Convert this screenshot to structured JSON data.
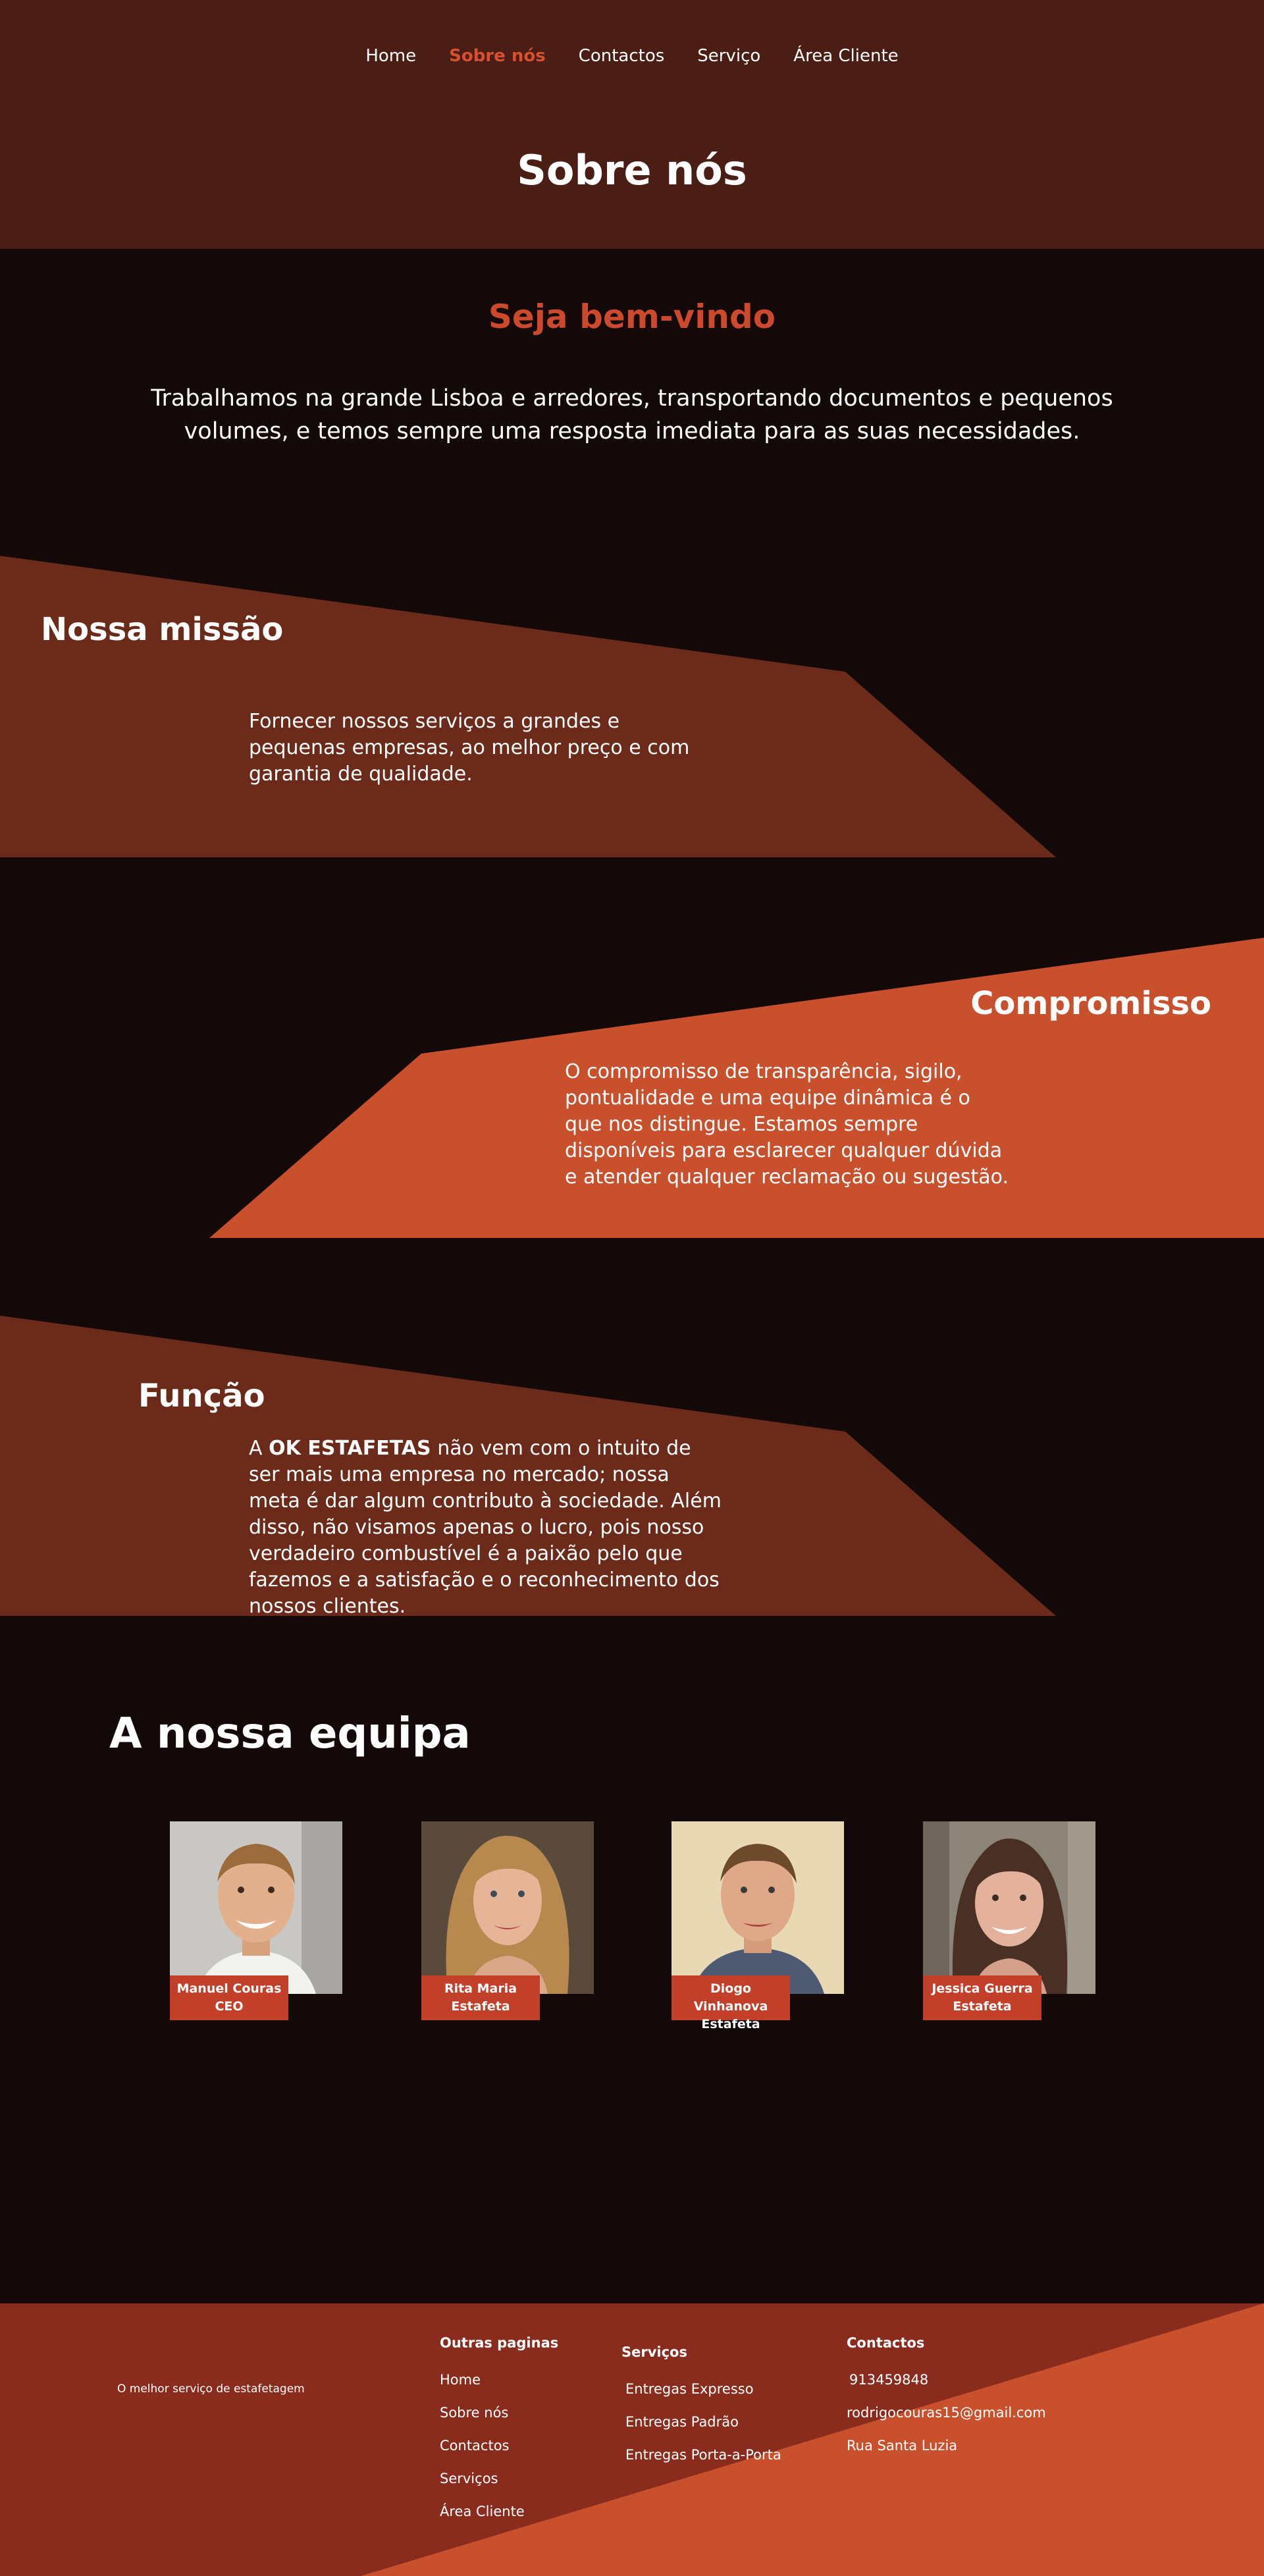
{
  "nav": {
    "items": [
      "Home",
      "Sobre nós",
      "Contactos",
      "Serviço",
      "Área Cliente"
    ],
    "active": "Sobre nós"
  },
  "hero": {
    "title": "Sobre nós"
  },
  "welcome": {
    "title": "Seja bem-vindo",
    "text": "Trabalhamos na grande Lisboa e arredores, transportando documentos e pequenos volumes, e temos sempre uma resposta imediata para as suas necessidades."
  },
  "mission": {
    "title": "Nossa missão",
    "text": "Fornecer nossos serviços a grandes e pequenas empresas, ao melhor preço e com garantia de qualidade."
  },
  "commitment": {
    "title": "Compromisso",
    "text": "O compromisso de transparência, sigilo, pontualidade e uma equipe dinâmica é o que nos distingue. Estamos sempre disponíveis para esclarecer qualquer dúvida e atender qualquer reclamação ou sugestão."
  },
  "function": {
    "title": "Função",
    "text_prefix": "A ",
    "text_bold": "OK ESTAFETAS",
    "text_rest": " não vem com o intuito de ser mais uma empresa no mercado; nossa meta é dar algum contributo à sociedade. Além disso, não visamos apenas o lucro, pois nosso verdadeiro combustível é a paixão pelo que fazemos e a satisfação e o reconhecimento dos nossos clientes."
  },
  "team": {
    "title": "A nossa equipa",
    "members": [
      {
        "name": "Manuel Couras",
        "role": "CEO"
      },
      {
        "name": "Rita Maria",
        "role": "Estafeta"
      },
      {
        "name": "Diogo Vinhanova",
        "role": "Estafeta"
      },
      {
        "name": "Jessica Guerra",
        "role": "Estafeta"
      }
    ]
  },
  "footer": {
    "tagline": "O melhor serviço de estafetagem",
    "pages_title": "Outras paginas",
    "pages": [
      "Home",
      "Sobre nós",
      "Contactos",
      "Serviços",
      "Área Cliente"
    ],
    "services_title": "Serviços",
    "services": [
      "Entregas Expresso",
      "Entregas Padrão",
      "Entregas Porta-a-Porta"
    ],
    "contacts_title": "Contactos",
    "phone": "913459848",
    "email": "rodrigocouras15@gmail.com",
    "address": "Rua Santa Luzia"
  },
  "colors": {
    "hero_bg": "#4a1d15",
    "page_bg": "#130909",
    "accent": "#cc4a2b",
    "band_dark": "#6b2a1a",
    "band_bright": "#c9502c",
    "footer_bg": "#8a2c1d"
  }
}
